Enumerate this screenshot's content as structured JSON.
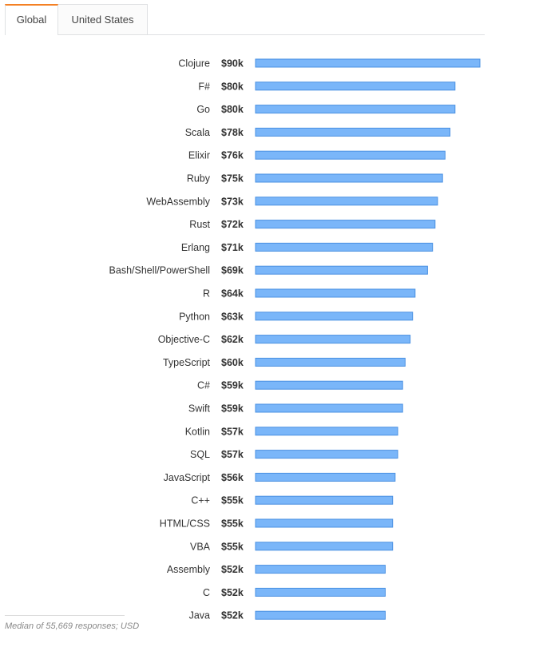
{
  "tabs": [
    {
      "label": "Global",
      "active": true
    },
    {
      "label": "United States",
      "active": false
    }
  ],
  "colors": {
    "bar_fill": "#7ab6f9",
    "bar_stroke": "#4a90e2",
    "active_tab_accent": "#f48024"
  },
  "chart_data": {
    "type": "bar",
    "orientation": "horizontal",
    "value_prefix": "$",
    "value_suffix": "k",
    "categories": [
      "Clojure",
      "F#",
      "Go",
      "Scala",
      "Elixir",
      "Ruby",
      "WebAssembly",
      "Rust",
      "Erlang",
      "Bash/Shell/PowerShell",
      "R",
      "Python",
      "Objective-C",
      "TypeScript",
      "C#",
      "Swift",
      "Kotlin",
      "SQL",
      "JavaScript",
      "C++",
      "HTML/CSS",
      "VBA",
      "Assembly",
      "C",
      "Java"
    ],
    "values": [
      90,
      80,
      80,
      78,
      76,
      75,
      73,
      72,
      71,
      69,
      64,
      63,
      62,
      60,
      59,
      59,
      57,
      57,
      56,
      55,
      55,
      55,
      52,
      52,
      52
    ],
    "value_labels": [
      "$90k",
      "$80k",
      "$80k",
      "$78k",
      "$76k",
      "$75k",
      "$73k",
      "$72k",
      "$71k",
      "$69k",
      "$64k",
      "$63k",
      "$62k",
      "$60k",
      "$59k",
      "$59k",
      "$57k",
      "$57k",
      "$56k",
      "$55k",
      "$55k",
      "$55k",
      "$52k",
      "$52k",
      "$52k"
    ],
    "xlim": [
      0,
      90
    ],
    "grid": false,
    "legend": "none"
  },
  "footnote": "Median of 55,669 responses; USD"
}
